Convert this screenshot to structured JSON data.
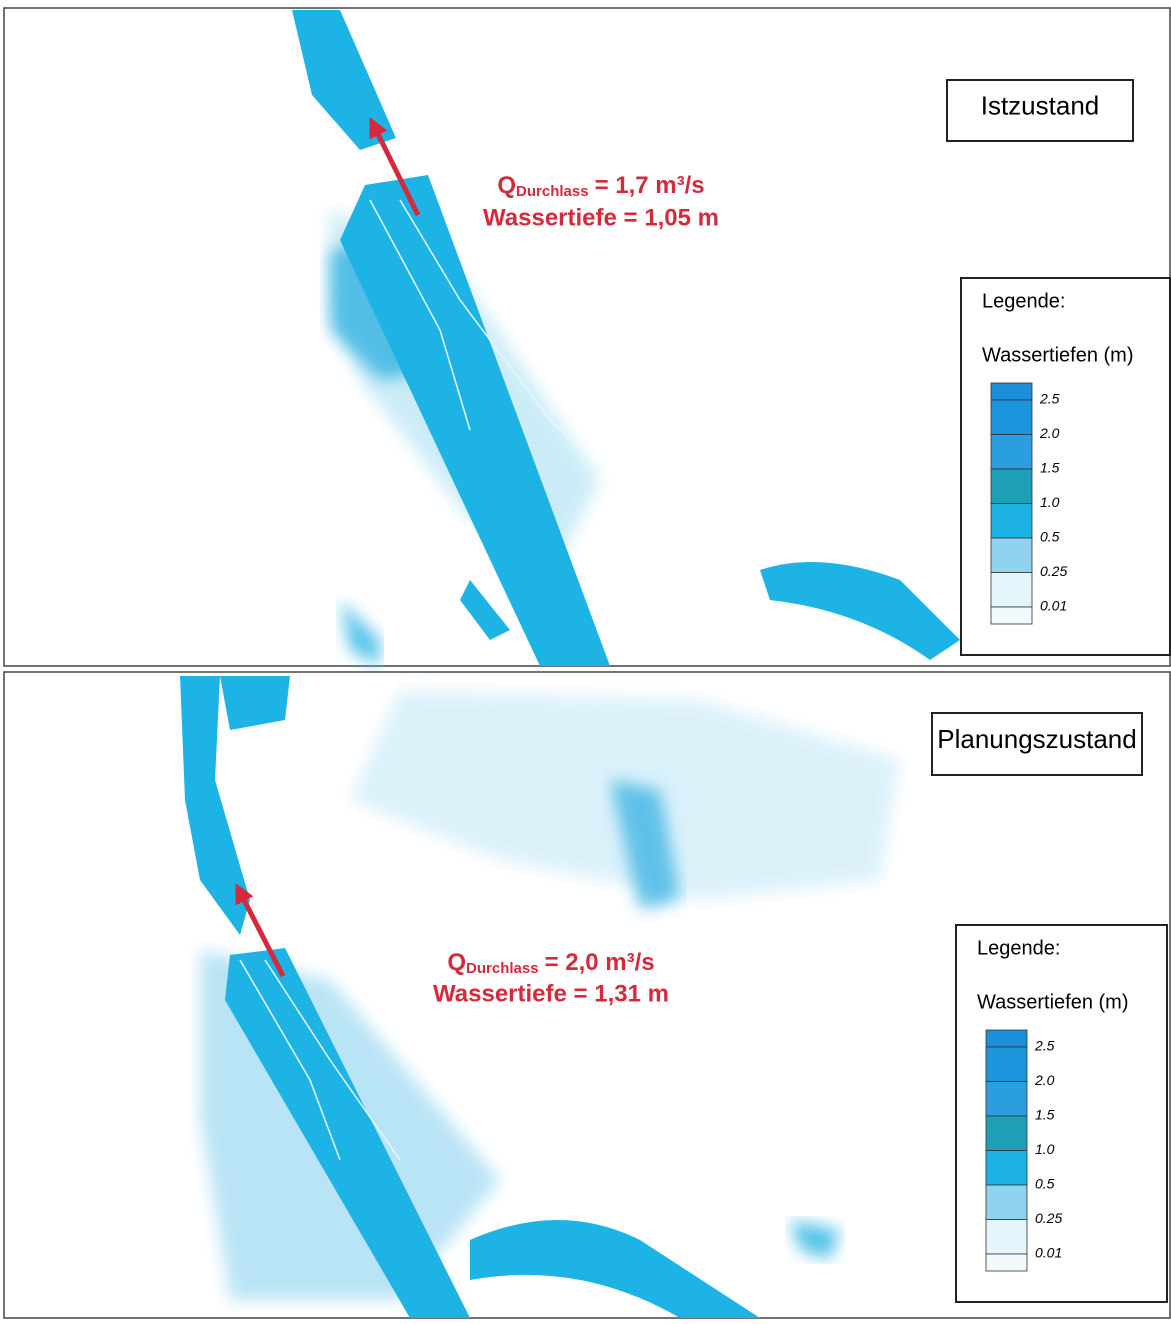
{
  "panels": [
    {
      "title": "Istzustand",
      "annotation": {
        "q_symbol": "Q",
        "q_subscript": "Durchlass",
        "q_value": "= 1,7 m³/s",
        "depth": "Wassertiefe = 1,05 m"
      },
      "legend": {
        "title": "Legende:",
        "subtitle": "Wassertiefen (m)",
        "labels": [
          "2.5",
          "2.0",
          "1.5",
          "1.0",
          "0.5",
          "0.25",
          "0.01"
        ]
      }
    },
    {
      "title": "Planungszustand",
      "annotation": {
        "q_symbol": "Q",
        "q_subscript": "Durchlass",
        "q_value": "= 2,0 m³/s",
        "depth": "Wassertiefe = 1,31 m"
      },
      "legend": {
        "title": "Legende:",
        "subtitle": "Wassertiefen (m)",
        "labels": [
          "2.5",
          "2.0",
          "1.5",
          "1.0",
          "0.5",
          "0.25",
          "0.01"
        ]
      }
    }
  ],
  "swatch_colors": [
    "#1b8fd9",
    "#1d95dc",
    "#2a9ee0",
    "#1f9fb6",
    "#1db3e5",
    "#8fd3ee",
    "#e4f5fb",
    "#f2fafd"
  ]
}
